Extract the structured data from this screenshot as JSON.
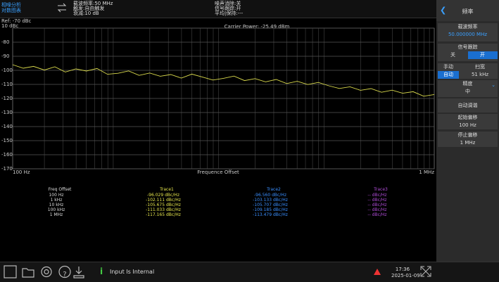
{
  "status_bar": {
    "mode": [
      "相噪分析",
      "对数图表"
    ],
    "carrier": "载波频率:50 MHz",
    "trigger": "触发:自由触发",
    "atten": "衰减:10 dB",
    "noise_cancel": "噪声消除:关",
    "signal_track": "信号跟踪:开",
    "average": "平均|保持:---"
  },
  "chart_data": {
    "type": "line",
    "ref_label": "Ref: -70 dBc",
    "scale_label": "10 dBc",
    "title": "Carrier Power: -25.49 dBm",
    "x_label": "Frequence Offset",
    "log_x": true,
    "grid": true,
    "x": [
      100,
      126,
      158,
      200,
      251,
      316,
      398,
      501,
      631,
      794,
      1000,
      1259,
      1585,
      1995,
      2512,
      3162,
      3981,
      5012,
      6310,
      7943,
      10000,
      12589,
      15849,
      19953,
      25119,
      31623,
      39811,
      50119,
      63096,
      79433,
      100000,
      125893,
      158489,
      199526,
      251189,
      316228,
      398107,
      501187,
      630957,
      794328,
      1000000
    ],
    "series": [
      {
        "color": "#d9d94c",
        "values": [
          -96.0,
          -98.5,
          -97.2,
          -99.8,
          -97.5,
          -101.2,
          -99.0,
          -100.5,
          -98.7,
          -102.8,
          -102.1,
          -100.4,
          -103.6,
          -101.9,
          -104.2,
          -103.0,
          -105.5,
          -102.7,
          -104.8,
          -106.9,
          -105.7,
          -104.1,
          -107.3,
          -105.9,
          -108.2,
          -106.5,
          -109.4,
          -107.8,
          -110.1,
          -108.6,
          -111.0,
          -112.9,
          -111.7,
          -114.2,
          -113.0,
          -115.6,
          -114.1,
          -116.3,
          -115.2,
          -118.4,
          -117.2
        ]
      }
    ],
    "xlim": [
      100,
      1000000
    ],
    "ylim": [
      -170,
      -70
    ],
    "xticks": [
      {
        "value": 100,
        "label": "100 Hz"
      },
      {
        "value": 1000000,
        "label": "1 MHz"
      }
    ],
    "yticks": [
      -80,
      -90,
      -100,
      -110,
      -120,
      -130,
      -140,
      -150,
      -160,
      -170
    ]
  },
  "table": {
    "header": [
      "Freq Offset",
      "Trace1",
      "Trace2",
      "Trace3"
    ],
    "rows": [
      [
        "100 Hz",
        "-96.029 dBc/Hz",
        "-96.560 dBc/Hz",
        "-- dBc/Hz"
      ],
      [
        "1 kHz",
        "-102.111 dBc/Hz",
        "-103.133 dBc/Hz",
        "-- dBc/Hz"
      ],
      [
        "10 kHz",
        "-105.675 dBc/Hz",
        "-105.707 dBc/Hz",
        "-- dBc/Hz"
      ],
      [
        "100 kHz",
        "-111.033 dBc/Hz",
        "-109.185 dBc/Hz",
        "-- dBc/Hz"
      ],
      [
        "1 MHz",
        "-117.165 dBc/Hz",
        "-113.479 dBc/Hz",
        "-- dBc/Hz"
      ]
    ]
  },
  "side_panel": {
    "title": "频率",
    "carrier_label": "载波频率",
    "carrier_value": "50.000000 MHz",
    "track_label": "信号跟踪",
    "track_off": "关",
    "track_on": "开",
    "manual": "手动",
    "auto": "自动",
    "span_label": "扫宽",
    "span_value": "51 kHz",
    "precision_label": "精度",
    "precision_value": "中",
    "auto_tune": "自动调谐",
    "start_label": "起始偏移",
    "start_value": "100 Hz",
    "stop_label": "停止偏移",
    "stop_value": "1 MHz"
  },
  "footer": {
    "message": "Input Is Internal",
    "time": "17:36",
    "date": "2025-01-09"
  }
}
